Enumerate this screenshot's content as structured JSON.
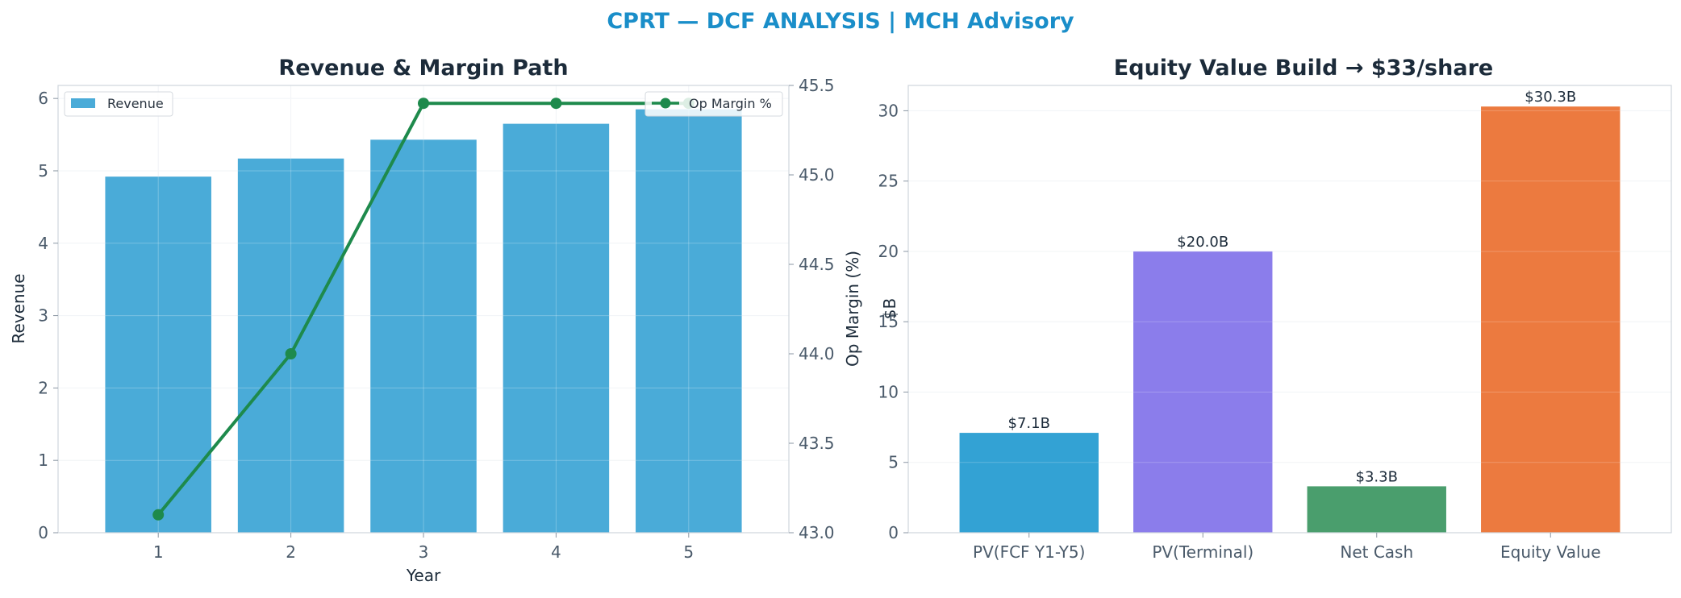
{
  "suptitle": "CPRT — DCF ANALYSIS | MCH Advisory",
  "colors": {
    "revenue_bar": "#4aabd8",
    "op_margin_line": "#1e8a4c",
    "title_accent": "#1a8ec9",
    "equity_bars": [
      "#33a2d4",
      "#8b7deb",
      "#4a9e6d",
      "#ec7a3f"
    ]
  },
  "chart_data": [
    {
      "type": "bar",
      "title": "Revenue & Margin Path",
      "xlabel": "Year",
      "ylabel": "Revenue",
      "y2label": "Op Margin (%)",
      "categories": [
        "1",
        "2",
        "3",
        "4",
        "5"
      ],
      "ylim": [
        0,
        6.18
      ],
      "y2lim": [
        43.0,
        45.5
      ],
      "yticks": [
        "0",
        "1",
        "2",
        "3",
        "4",
        "5",
        "6"
      ],
      "y2ticks": [
        "43.0",
        "43.5",
        "44.0",
        "44.5",
        "45.0",
        "45.5"
      ],
      "grid": true,
      "series": [
        {
          "name": "Revenue",
          "type": "bar",
          "axis": "left",
          "values": [
            4.92,
            5.17,
            5.43,
            5.65,
            5.85
          ]
        },
        {
          "name": "Op Margin %",
          "type": "line",
          "axis": "right",
          "values": [
            43.1,
            44.0,
            45.4,
            45.4,
            45.4
          ]
        }
      ],
      "legend": [
        {
          "label": "Revenue",
          "placement": "top-left"
        },
        {
          "label": "Op Margin %",
          "placement": "top-right"
        }
      ]
    },
    {
      "type": "bar",
      "title": "Equity Value Build → $33/share",
      "xlabel": "",
      "ylabel": "$B",
      "categories": [
        "PV(FCF Y1-Y5)",
        "PV(Terminal)",
        "Net Cash",
        "Equity Value"
      ],
      "values": [
        7.1,
        20.0,
        3.3,
        30.3
      ],
      "data_labels": [
        "$7.1B",
        "$20.0B",
        "$3.3B",
        "$30.3B"
      ],
      "ylim": [
        0,
        31.8
      ],
      "yticks": [
        "0",
        "5",
        "10",
        "15",
        "20",
        "25",
        "30"
      ],
      "grid": true
    }
  ]
}
